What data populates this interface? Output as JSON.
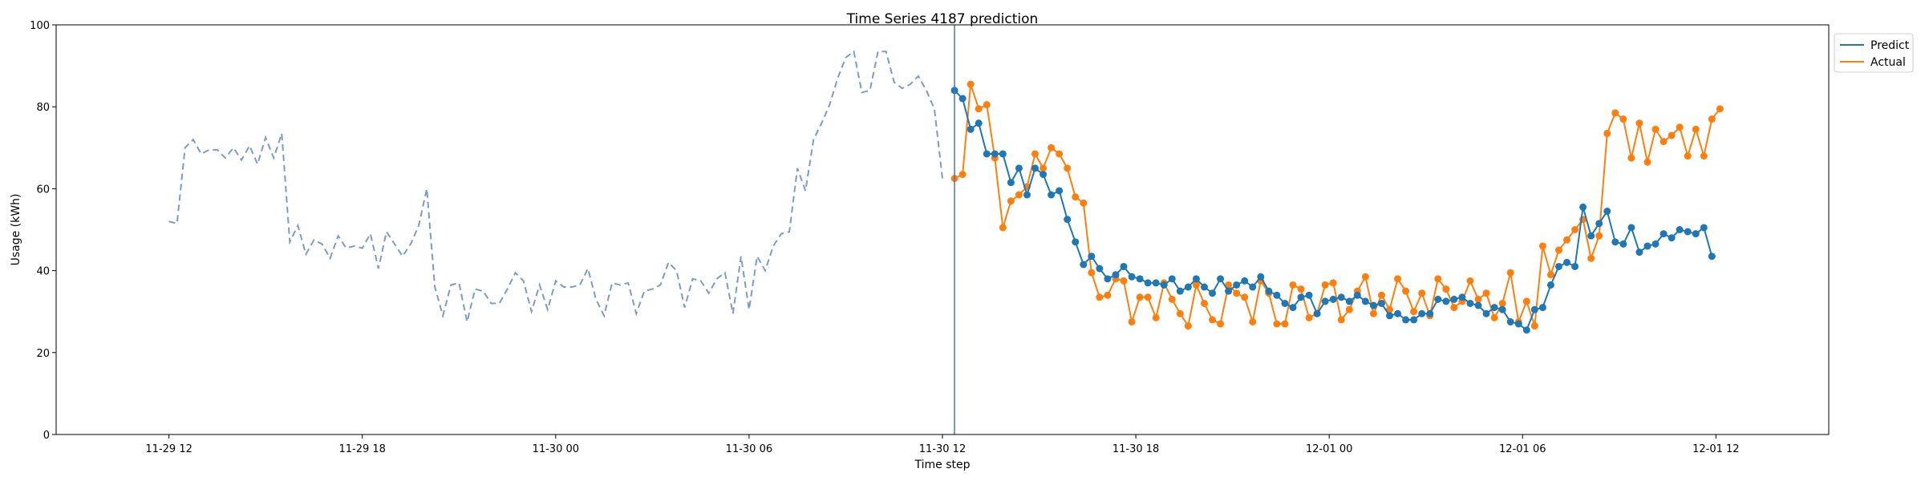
{
  "chart_data": {
    "type": "line",
    "title": "Time Series 4187 prediction",
    "xlabel": "Time step",
    "ylabel": "Usage (kWh)",
    "ylim": [
      0,
      100
    ],
    "yticks": [
      0,
      20,
      40,
      60,
      80,
      100
    ],
    "x_unit": "hours since 11-29 12:00",
    "xlim": [
      -3.5,
      51.5
    ],
    "xticks": [
      {
        "t": 0,
        "label": "11-29 12"
      },
      {
        "t": 6,
        "label": "11-29 18"
      },
      {
        "t": 12,
        "label": "11-30 00"
      },
      {
        "t": 18,
        "label": "11-30 06"
      },
      {
        "t": 24,
        "label": "11-30 12"
      },
      {
        "t": 30,
        "label": "11-30 18"
      },
      {
        "t": 36,
        "label": "12-01 00"
      },
      {
        "t": 42,
        "label": "12-01 06"
      },
      {
        "t": 48,
        "label": "12-01 12"
      }
    ],
    "legend": {
      "position": "top-right",
      "entries": [
        "Predict",
        "Actual"
      ]
    },
    "grid": false,
    "forecast_start": 24.375,
    "colors": {
      "history": "#7b9cc6",
      "predict": "#1f77b4",
      "actual": "#ff7f0e",
      "divider": "#4c72c0"
    },
    "history": {
      "t0": 0,
      "step": 0.25,
      "values": [
        52,
        51.5,
        70,
        72,
        68.5,
        69.5,
        69.5,
        67.5,
        70,
        67,
        70.5,
        66,
        72.5,
        67.5,
        73.5,
        47,
        51,
        44,
        47.5,
        46.5,
        43,
        48.5,
        45.5,
        46,
        45.5,
        49,
        40.5,
        49.5,
        46.5,
        43.5,
        46.5,
        51,
        60,
        36,
        29,
        36.5,
        37,
        27.5,
        35.5,
        35,
        32,
        32,
        35.5,
        39.5,
        37.5,
        30,
        36.5,
        30.5,
        37.5,
        36,
        36,
        36.5,
        40.5,
        33,
        29,
        37,
        36.5,
        37,
        29.5,
        35,
        35.5,
        36.5,
        42,
        40,
        31,
        38,
        37.5,
        34.5,
        38,
        39.5,
        29.5,
        43.5,
        30.5,
        43.5,
        40,
        46,
        49,
        49.5,
        65,
        59.5,
        72,
        76,
        80.5,
        87,
        92,
        93.5,
        83.5,
        84,
        93.5,
        93.5,
        86,
        84.5,
        85.5,
        87.5,
        84,
        79.5,
        62.5
      ]
    },
    "series": [
      {
        "name": "Predict",
        "t0": 24.375,
        "step": 0.25,
        "values": [
          84,
          82,
          74.5,
          76,
          68.5,
          68.5,
          68.5,
          61.5,
          65,
          58.5,
          65,
          63.5,
          58.5,
          59.5,
          52.5,
          47,
          41.5,
          43.5,
          40.5,
          38,
          39,
          41,
          38.5,
          38,
          37,
          37,
          36.5,
          38,
          35,
          36,
          38,
          36,
          34.5,
          38,
          35,
          36.5,
          37.5,
          36,
          38.5,
          35,
          34,
          32,
          31,
          33.5,
          34,
          29.5,
          32.5,
          33,
          33.5,
          32.5,
          34,
          32.5,
          31.5,
          32,
          29,
          29.5,
          28,
          28,
          29.5,
          29.5,
          33,
          32.5,
          33,
          33.5,
          32,
          31.5,
          29.5,
          31,
          30.5,
          27.5,
          27,
          25.5,
          30.5,
          31,
          36.5,
          41,
          42,
          41,
          55.5,
          48.5,
          51.5,
          54.5,
          47,
          46.5,
          50.5,
          44.5,
          46,
          46.5,
          49,
          48,
          50,
          49.5,
          49,
          50.5,
          43.5
        ]
      },
      {
        "name": "Actual",
        "t0": 24.375,
        "step": 0.25,
        "values": [
          62.5,
          63.5,
          85.5,
          79.5,
          80.5,
          67.5,
          50.5,
          57,
          58.5,
          60.5,
          68.5,
          65,
          70,
          68.5,
          65,
          58,
          56.5,
          39.5,
          33.5,
          34,
          38,
          37.5,
          27.5,
          33.5,
          33.5,
          28.5,
          37,
          33,
          29.5,
          26.5,
          36.5,
          32,
          28,
          27,
          36.5,
          34.5,
          33.5,
          27.5,
          37.5,
          34.5,
          27,
          27,
          36.5,
          35.5,
          28.5,
          29.5,
          36.5,
          37,
          28,
          30.5,
          35,
          38.5,
          29.5,
          34,
          30.5,
          38,
          35,
          30,
          34.5,
          29,
          38,
          35.5,
          31,
          32.5,
          37.5,
          33,
          34.5,
          28.5,
          32,
          39.5,
          27.5,
          32.5,
          26.5,
          46,
          39,
          45,
          47.5,
          50,
          52.5,
          43,
          48.5,
          73.5,
          78.5,
          77,
          67.5,
          76,
          66.5,
          74.5,
          71.5,
          73,
          75,
          68,
          74.5,
          68,
          77,
          79.5
        ]
      }
    ]
  }
}
